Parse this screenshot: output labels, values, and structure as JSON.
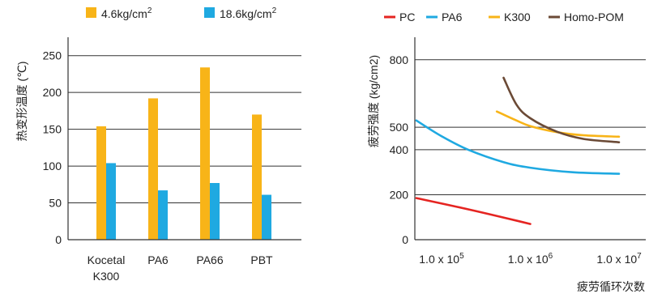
{
  "chart_data": [
    {
      "type": "bar",
      "categories": [
        [
          "Kocetal",
          "K300"
        ],
        [
          "PA6"
        ],
        [
          "PA66"
        ],
        [
          "PBT"
        ]
      ],
      "series": [
        {
          "name": "4.6kg/cm2",
          "name_base": "4.6kg/cm",
          "name_sup": "2",
          "color": "#F8B418",
          "values": [
            154,
            192,
            234,
            170
          ]
        },
        {
          "name": "18.6kg/cm2",
          "name_base": "18.6kg/cm",
          "name_sup": "2",
          "color": "#1FA9E1",
          "values": [
            104,
            67,
            77,
            61
          ]
        }
      ],
      "ylabel": "热变形温度 (℃)",
      "xlabel": "",
      "ylim": [
        0,
        275
      ],
      "yticks": [
        0,
        50,
        100,
        150,
        200,
        250
      ],
      "grid": true,
      "legend": "top"
    },
    {
      "type": "line",
      "x_scale": "log",
      "xlim": [
        50000,
        20000000
      ],
      "xticks": [
        {
          "value": 100000,
          "base": "1.0 x 10",
          "exp": "5"
        },
        {
          "value": 1000000,
          "base": "1.0 x 10",
          "exp": "6"
        },
        {
          "value": 10000000,
          "base": "1.0 x 10",
          "exp": "7"
        }
      ],
      "ylim": [
        0,
        900
      ],
      "yticks": [
        0,
        200,
        400,
        500,
        800
      ],
      "ylabel": "疲劳强度 (kg/cm2)",
      "xlabel": "疲劳循环次数",
      "grid": true,
      "legend": "top",
      "series": [
        {
          "name": "PC",
          "color": "#E52421",
          "x": [
            52000,
            200000,
            1000000
          ],
          "y": [
            185,
            135,
            70
          ]
        },
        {
          "name": "PA6",
          "color": "#1FA9E1",
          "x": [
            52000,
            100000,
            200000,
            500000,
            1000000,
            3000000,
            10000000
          ],
          "y": [
            530,
            460,
            400,
            345,
            320,
            300,
            293
          ]
        },
        {
          "name": "K300",
          "color": "#F8B418",
          "x": [
            420000,
            700000,
            1000000,
            2000000,
            4000000,
            10000000
          ],
          "y": [
            570,
            530,
            505,
            478,
            464,
            458
          ]
        },
        {
          "name": "Homo-POM",
          "color": "#6B4A36",
          "x": [
            500000,
            700000,
            1000000,
            2000000,
            4000000,
            10000000
          ],
          "y": [
            720,
            600,
            540,
            480,
            448,
            433
          ]
        }
      ]
    }
  ]
}
